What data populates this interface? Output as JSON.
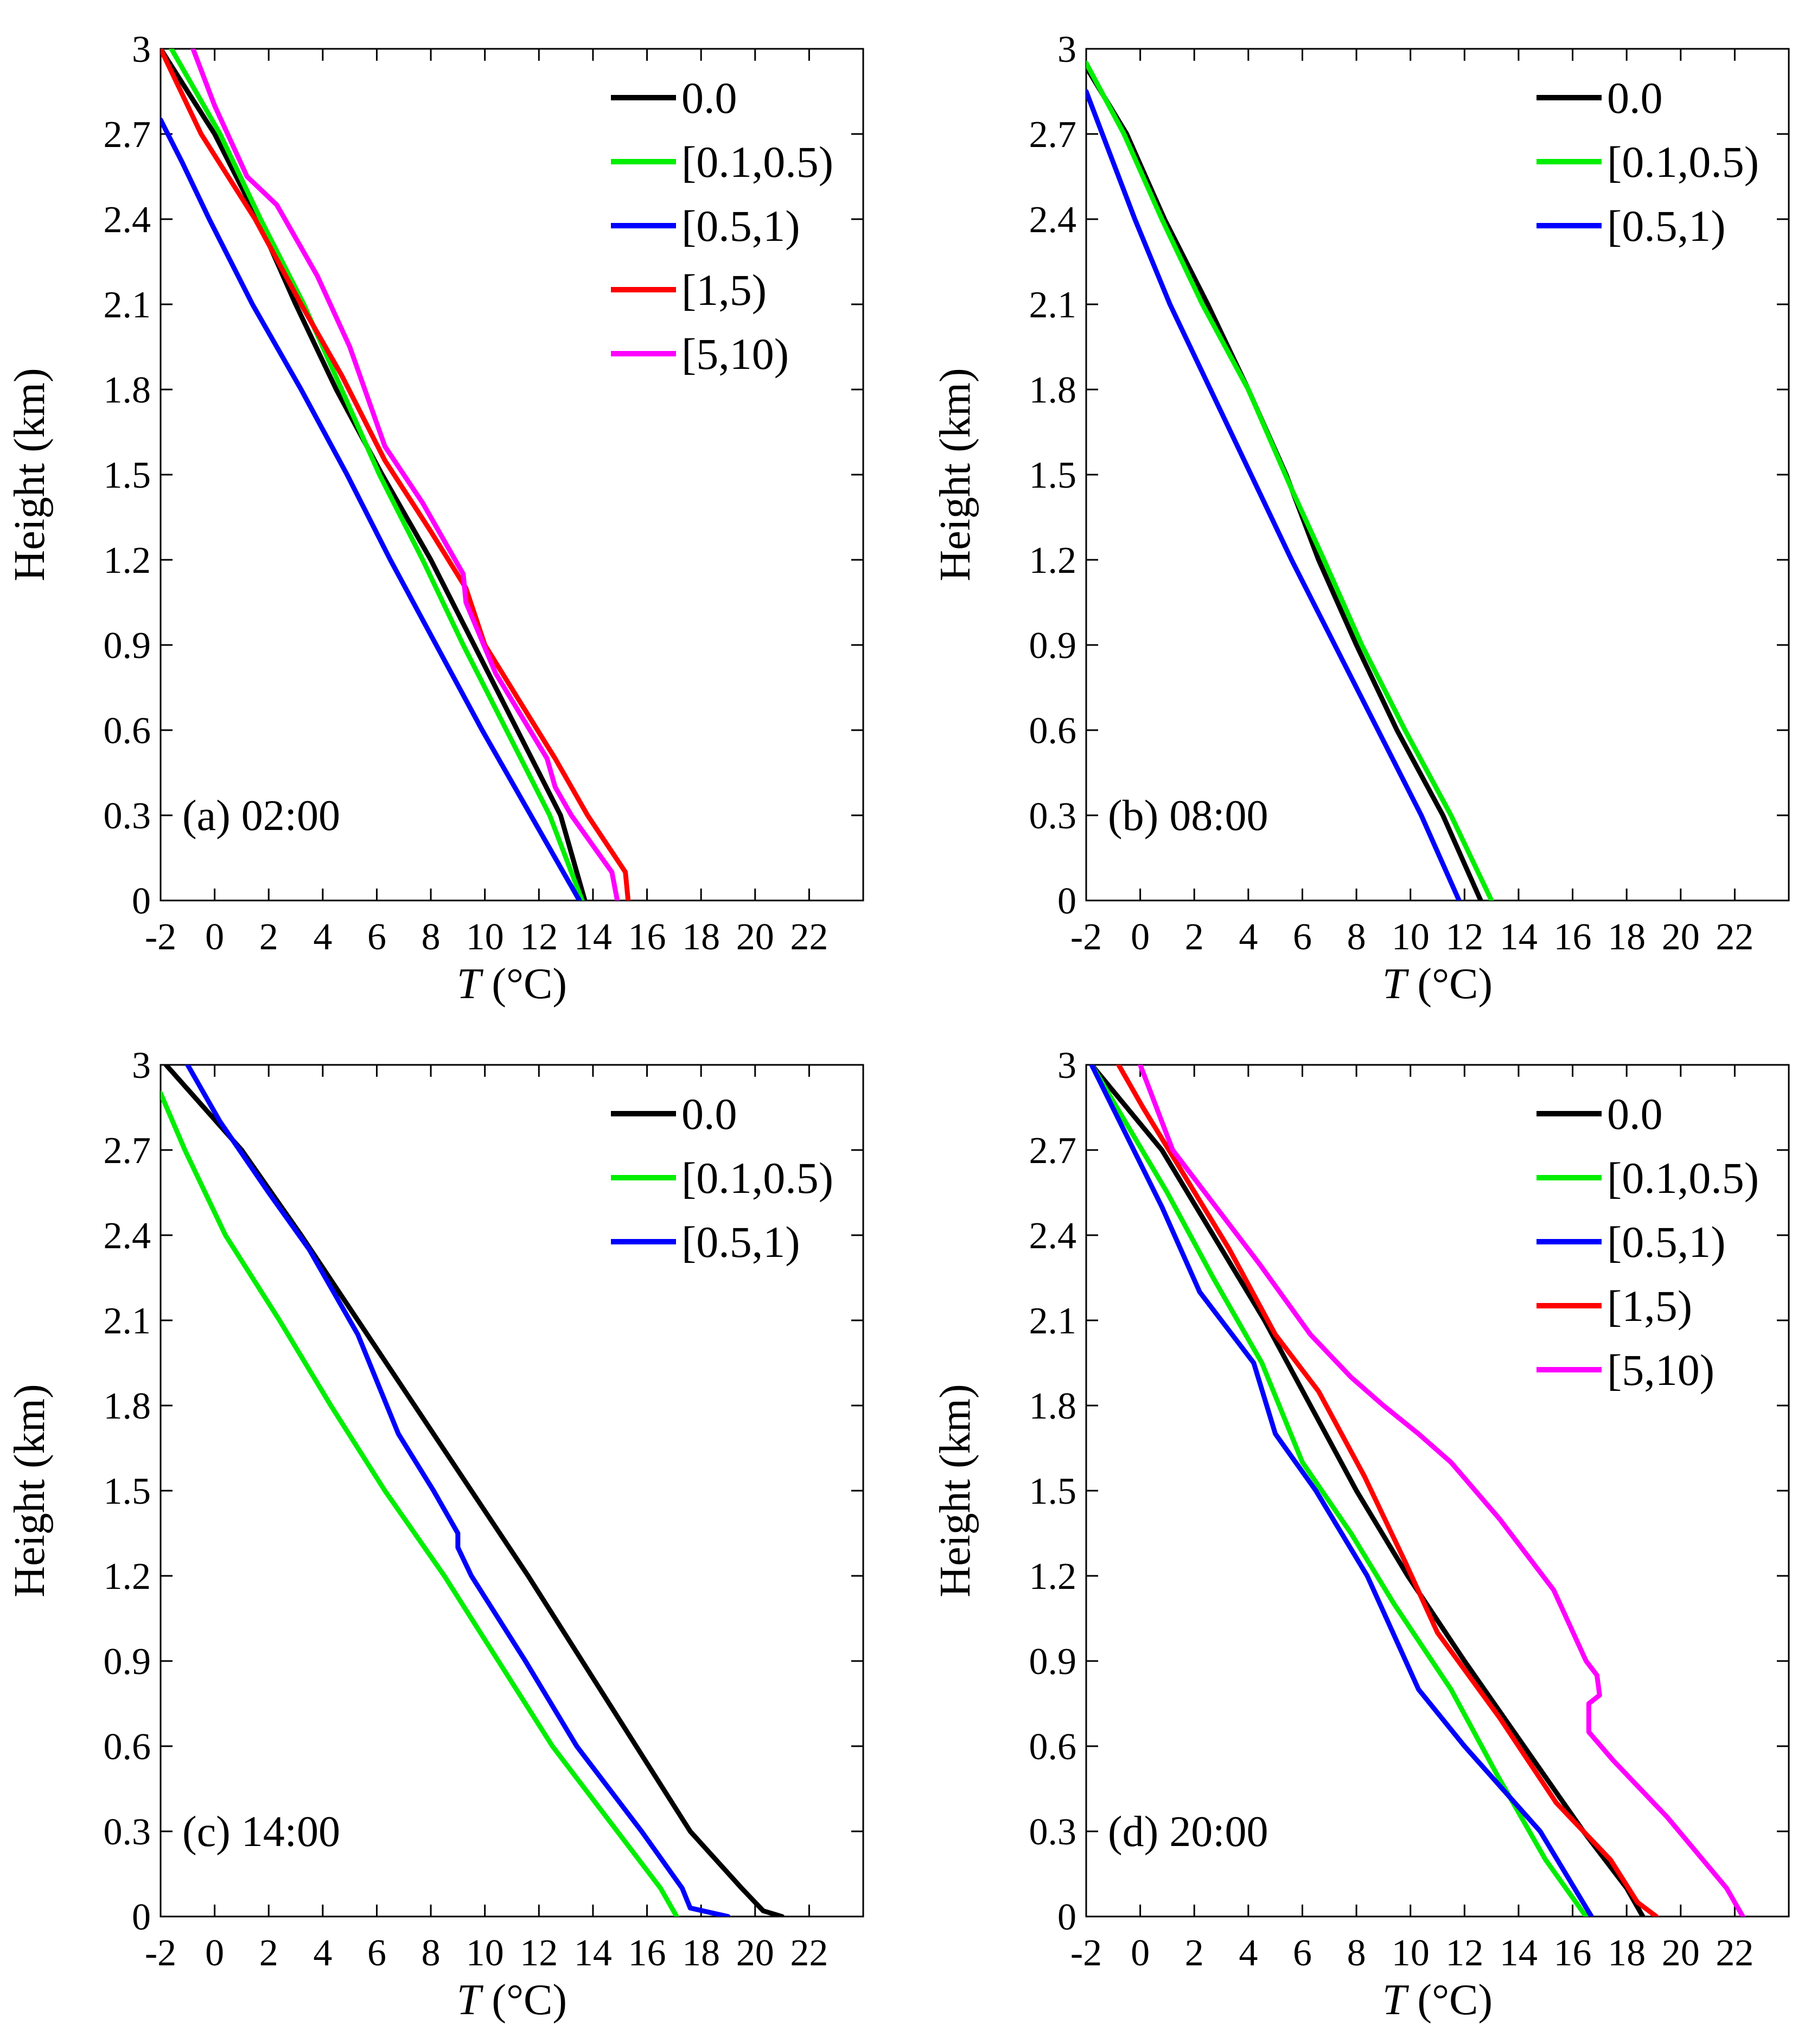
{
  "figure": {
    "layout": "2x2 panels"
  },
  "chart_data": [
    {
      "type": "line",
      "panel_label": "(a)  02:00",
      "xlabel_italic": "T",
      "xlabel_rest": " (°C)",
      "ylabel": "Height (km)",
      "xlim": [
        -2,
        24
      ],
      "ylim": [
        0,
        3
      ],
      "xticks": [
        -2,
        0,
        2,
        4,
        6,
        8,
        10,
        12,
        14,
        16,
        18,
        20,
        22
      ],
      "yticks": [
        0,
        0.3,
        0.6,
        0.9,
        1.2,
        1.5,
        1.8,
        2.1,
        2.4,
        2.7,
        3
      ],
      "ytick_labels": [
        "0",
        "0.3",
        "0.6",
        "0.9",
        "1.2",
        "1.5",
        "1.8",
        "2.1",
        "2.4",
        "2.7",
        "3"
      ],
      "legend_position": "top-right",
      "series": [
        {
          "name": "0.0",
          "color": "#000000",
          "points": [
            [
              13.7,
              0
            ],
            [
              12.8,
              0.3
            ],
            [
              11.2,
              0.6
            ],
            [
              9.6,
              0.9
            ],
            [
              8.0,
              1.2
            ],
            [
              6.2,
              1.5
            ],
            [
              4.5,
              1.8
            ],
            [
              3.0,
              2.1
            ],
            [
              1.6,
              2.4
            ],
            [
              0.0,
              2.7
            ],
            [
              -2.0,
              3.0
            ]
          ]
        },
        {
          "name": "[0.1,0.5)",
          "color": "#00ee00",
          "points": [
            [
              13.6,
              0
            ],
            [
              12.4,
              0.3
            ],
            [
              10.8,
              0.6
            ],
            [
              9.2,
              0.9
            ],
            [
              7.7,
              1.2
            ],
            [
              6.1,
              1.5
            ],
            [
              4.7,
              1.8
            ],
            [
              3.3,
              2.1
            ],
            [
              1.7,
              2.4
            ],
            [
              0.2,
              2.7
            ],
            [
              -1.6,
              3.0
            ]
          ]
        },
        {
          "name": "[0.5,1)",
          "color": "#0000ff",
          "points": [
            [
              13.5,
              0
            ],
            [
              11.7,
              0.3
            ],
            [
              9.9,
              0.6
            ],
            [
              8.2,
              0.9
            ],
            [
              6.5,
              1.2
            ],
            [
              4.9,
              1.5
            ],
            [
              3.2,
              1.8
            ],
            [
              1.4,
              2.1
            ],
            [
              -0.2,
              2.4
            ],
            [
              -1.2,
              2.6
            ],
            [
              -2.0,
              2.75
            ]
          ]
        },
        {
          "name": "[1,5)",
          "color": "#ff0000",
          "points": [
            [
              15.3,
              0
            ],
            [
              15.2,
              0.1
            ],
            [
              13.8,
              0.3
            ],
            [
              12.6,
              0.5
            ],
            [
              11.3,
              0.7
            ],
            [
              10.0,
              0.9
            ],
            [
              9.3,
              1.1
            ],
            [
              8.0,
              1.3
            ],
            [
              6.3,
              1.55
            ],
            [
              4.7,
              1.85
            ],
            [
              3.2,
              2.1
            ],
            [
              1.5,
              2.4
            ],
            [
              -0.5,
              2.7
            ],
            [
              -2.0,
              3.0
            ]
          ]
        },
        {
          "name": "[5,10)",
          "color": "#ff00ff",
          "points": [
            [
              14.9,
              0
            ],
            [
              14.7,
              0.1
            ],
            [
              13.2,
              0.3
            ],
            [
              12.6,
              0.4
            ],
            [
              12.3,
              0.5
            ],
            [
              10.4,
              0.8
            ],
            [
              9.3,
              1.05
            ],
            [
              9.2,
              1.15
            ],
            [
              7.7,
              1.4
            ],
            [
              6.3,
              1.6
            ],
            [
              5.0,
              1.95
            ],
            [
              3.8,
              2.2
            ],
            [
              2.3,
              2.45
            ],
            [
              1.2,
              2.55
            ],
            [
              0.0,
              2.8
            ],
            [
              -0.8,
              3.0
            ]
          ]
        }
      ]
    },
    {
      "type": "line",
      "panel_label": "(b)  08:00",
      "xlabel_italic": "T",
      "xlabel_rest": " (°C)",
      "ylabel": "Height (km)",
      "xlim": [
        -2,
        24
      ],
      "ylim": [
        0,
        3
      ],
      "xticks": [
        -2,
        0,
        2,
        4,
        6,
        8,
        10,
        12,
        14,
        16,
        18,
        20,
        22
      ],
      "yticks": [
        0,
        0.3,
        0.6,
        0.9,
        1.2,
        1.5,
        1.8,
        2.1,
        2.4,
        2.7,
        3
      ],
      "ytick_labels": [
        "0",
        "0.3",
        "0.6",
        "0.9",
        "1.2",
        "1.5",
        "1.8",
        "2.1",
        "2.4",
        "2.7",
        "3"
      ],
      "legend_position": "top-right",
      "series": [
        {
          "name": "0.0",
          "color": "#000000",
          "points": [
            [
              12.6,
              0
            ],
            [
              11.2,
              0.3
            ],
            [
              9.5,
              0.6
            ],
            [
              8.0,
              0.9
            ],
            [
              6.6,
              1.2
            ],
            [
              5.4,
              1.5
            ],
            [
              4.0,
              1.8
            ],
            [
              2.5,
              2.1
            ],
            [
              0.9,
              2.4
            ],
            [
              -0.5,
              2.7
            ],
            [
              -1.9,
              2.92
            ]
          ]
        },
        {
          "name": "[0.1,0.5)",
          "color": "#00ee00",
          "points": [
            [
              13.0,
              0
            ],
            [
              11.5,
              0.3
            ],
            [
              9.8,
              0.6
            ],
            [
              8.2,
              0.9
            ],
            [
              6.8,
              1.2
            ],
            [
              5.6,
              1.45
            ],
            [
              4.0,
              1.8
            ],
            [
              2.3,
              2.1
            ],
            [
              0.8,
              2.4
            ],
            [
              -0.6,
              2.7
            ],
            [
              -2.0,
              2.95
            ]
          ]
        },
        {
          "name": "[0.5,1)",
          "color": "#0000ff",
          "points": [
            [
              11.8,
              0
            ],
            [
              10.4,
              0.3
            ],
            [
              8.8,
              0.6
            ],
            [
              7.2,
              0.9
            ],
            [
              5.6,
              1.2
            ],
            [
              4.1,
              1.5
            ],
            [
              2.6,
              1.8
            ],
            [
              1.1,
              2.1
            ],
            [
              -0.2,
              2.4
            ],
            [
              -1.2,
              2.65
            ],
            [
              -2.0,
              2.85
            ]
          ]
        }
      ]
    },
    {
      "type": "line",
      "panel_label": "(c)  14:00",
      "xlabel_italic": "T",
      "xlabel_rest": " (°C)",
      "ylabel": "Height (km)",
      "xlim": [
        -2,
        24
      ],
      "ylim": [
        0,
        3
      ],
      "xticks": [
        -2,
        0,
        2,
        4,
        6,
        8,
        10,
        12,
        14,
        16,
        18,
        20,
        22
      ],
      "yticks": [
        0,
        0.3,
        0.6,
        0.9,
        1.2,
        1.5,
        1.8,
        2.1,
        2.4,
        2.7,
        3
      ],
      "ytick_labels": [
        "0",
        "0.3",
        "0.6",
        "0.9",
        "1.2",
        "1.5",
        "1.8",
        "2.1",
        "2.4",
        "2.7",
        "3"
      ],
      "legend_position": "top-right",
      "series": [
        {
          "name": "0.0",
          "color": "#000000",
          "points": [
            [
              21.0,
              0
            ],
            [
              20.3,
              0.02
            ],
            [
              19.5,
              0.1
            ],
            [
              17.6,
              0.3
            ],
            [
              15.6,
              0.6
            ],
            [
              13.6,
              0.9
            ],
            [
              11.6,
              1.2
            ],
            [
              9.5,
              1.5
            ],
            [
              7.4,
              1.8
            ],
            [
              5.3,
              2.1
            ],
            [
              3.2,
              2.4
            ],
            [
              1.0,
              2.7
            ],
            [
              -1.8,
              3.0
            ]
          ]
        },
        {
          "name": "[0.1,0.5)",
          "color": "#00ee00",
          "points": [
            [
              17.1,
              0
            ],
            [
              16.5,
              0.1
            ],
            [
              14.9,
              0.3
            ],
            [
              12.5,
              0.6
            ],
            [
              10.5,
              0.9
            ],
            [
              8.5,
              1.2
            ],
            [
              6.3,
              1.5
            ],
            [
              4.3,
              1.8
            ],
            [
              2.4,
              2.1
            ],
            [
              0.4,
              2.4
            ],
            [
              -1.1,
              2.7
            ],
            [
              -2.0,
              2.9
            ]
          ]
        },
        {
          "name": "[0.5,1)",
          "color": "#0000ff",
          "points": [
            [
              19.0,
              0
            ],
            [
              17.6,
              0.03
            ],
            [
              17.3,
              0.1
            ],
            [
              15.8,
              0.3
            ],
            [
              13.4,
              0.6
            ],
            [
              11.5,
              0.9
            ],
            [
              9.5,
              1.2
            ],
            [
              9.0,
              1.3
            ],
            [
              9.0,
              1.35
            ],
            [
              8.1,
              1.5
            ],
            [
              6.8,
              1.7
            ],
            [
              5.3,
              2.05
            ],
            [
              3.5,
              2.35
            ],
            [
              2.0,
              2.55
            ],
            [
              0.2,
              2.8
            ],
            [
              -1.0,
              3.0
            ]
          ]
        }
      ]
    },
    {
      "type": "line",
      "panel_label": "(d)  20:00",
      "xlabel_italic": "T",
      "xlabel_rest": " (°C)",
      "ylabel": "Height (km)",
      "xlim": [
        -2,
        24
      ],
      "ylim": [
        0,
        3
      ],
      "xticks": [
        -2,
        0,
        2,
        4,
        6,
        8,
        10,
        12,
        14,
        16,
        18,
        20,
        22
      ],
      "yticks": [
        0,
        0.3,
        0.6,
        0.9,
        1.2,
        1.5,
        1.8,
        2.1,
        2.4,
        2.7,
        3
      ],
      "ytick_labels": [
        "0",
        "0.3",
        "0.6",
        "0.9",
        "1.2",
        "1.5",
        "1.8",
        "2.1",
        "2.4",
        "2.7",
        "3"
      ],
      "legend_position": "top-right",
      "series": [
        {
          "name": "0.0",
          "color": "#000000",
          "points": [
            [
              18.6,
              0
            ],
            [
              18.0,
              0.1
            ],
            [
              16.4,
              0.3
            ],
            [
              14.2,
              0.6
            ],
            [
              12.0,
              0.9
            ],
            [
              9.9,
              1.2
            ],
            [
              8.0,
              1.5
            ],
            [
              6.3,
              1.8
            ],
            [
              4.6,
              2.1
            ],
            [
              2.7,
              2.4
            ],
            [
              0.8,
              2.7
            ],
            [
              -1.8,
              3.0
            ]
          ]
        },
        {
          "name": "[0.1,0.5)",
          "color": "#00ee00",
          "points": [
            [
              16.5,
              0
            ],
            [
              15.0,
              0.2
            ],
            [
              13.2,
              0.5
            ],
            [
              11.5,
              0.8
            ],
            [
              9.4,
              1.1
            ],
            [
              7.8,
              1.35
            ],
            [
              6.0,
              1.6
            ],
            [
              4.5,
              1.95
            ],
            [
              2.7,
              2.25
            ],
            [
              1.0,
              2.55
            ],
            [
              -1.8,
              3.0
            ]
          ]
        },
        {
          "name": "[0.5,1)",
          "color": "#0000ff",
          "points": [
            [
              16.7,
              0
            ],
            [
              14.8,
              0.3
            ],
            [
              12.0,
              0.6
            ],
            [
              10.3,
              0.8
            ],
            [
              8.4,
              1.2
            ],
            [
              6.5,
              1.5
            ],
            [
              5.0,
              1.7
            ],
            [
              4.2,
              1.95
            ],
            [
              2.2,
              2.2
            ],
            [
              0.8,
              2.5
            ],
            [
              -0.5,
              2.75
            ],
            [
              -1.8,
              3.0
            ]
          ]
        },
        {
          "name": "[1,5)",
          "color": "#ff0000",
          "points": [
            [
              19.1,
              0
            ],
            [
              18.4,
              0.05
            ],
            [
              17.4,
              0.2
            ],
            [
              15.4,
              0.4
            ],
            [
              13.3,
              0.7
            ],
            [
              11.0,
              1.0
            ],
            [
              9.8,
              1.25
            ],
            [
              8.3,
              1.55
            ],
            [
              6.6,
              1.85
            ],
            [
              5.0,
              2.05
            ],
            [
              3.3,
              2.35
            ],
            [
              1.7,
              2.6
            ],
            [
              0.1,
              2.85
            ],
            [
              -0.8,
              3.0
            ]
          ]
        },
        {
          "name": "[5,10)",
          "color": "#ff00ff",
          "points": [
            [
              22.3,
              0
            ],
            [
              21.7,
              0.1
            ],
            [
              19.5,
              0.35
            ],
            [
              17.5,
              0.55
            ],
            [
              16.6,
              0.65
            ],
            [
              16.6,
              0.75
            ],
            [
              17.0,
              0.78
            ],
            [
              16.9,
              0.85
            ],
            [
              16.5,
              0.9
            ],
            [
              15.3,
              1.15
            ],
            [
              13.3,
              1.4
            ],
            [
              11.5,
              1.6
            ],
            [
              10.3,
              1.7
            ],
            [
              9.0,
              1.8
            ],
            [
              7.8,
              1.9
            ],
            [
              6.3,
              2.05
            ],
            [
              4.4,
              2.3
            ],
            [
              2.8,
              2.5
            ],
            [
              1.2,
              2.7
            ],
            [
              0.0,
              3.0
            ]
          ]
        }
      ]
    }
  ]
}
